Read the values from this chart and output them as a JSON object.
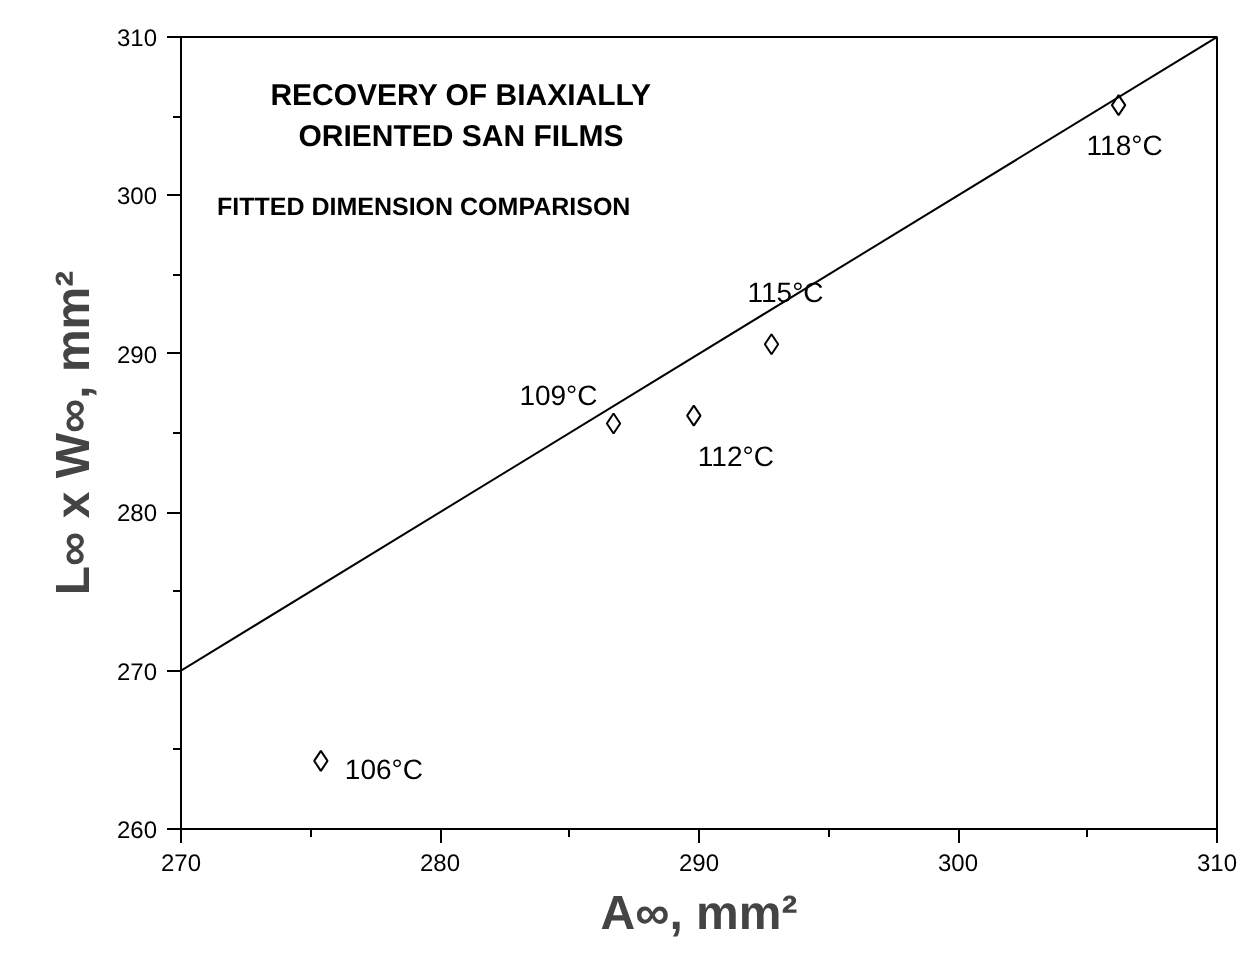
{
  "chart_data": {
    "type": "scatter",
    "title": "RECOVERY OF BIAXIALLY\nORIENTED SAN FILMS",
    "subtitle": "FITTED DIMENSION COMPARISON",
    "xlabel": "A∞, mm²",
    "ylabel": "L∞ x W∞, mm²",
    "x": [
      275.4,
      286.7,
      289.8,
      292.8,
      306.2
    ],
    "series": [
      {
        "color": "#000000",
        "marker": "diamond",
        "values": [
          264.3,
          285.6,
          286.1,
          290.6,
          305.7
        ]
      },
      {
        "type": "line",
        "color": "#000000",
        "marker": "none",
        "line_style": "solid",
        "x": [
          270,
          310
        ],
        "values": [
          270,
          310
        ]
      }
    ],
    "annotations": [
      {
        "text": "106°C",
        "x": 275.4,
        "y": 264.3
      },
      {
        "text": "109°C",
        "x": 286.7,
        "y": 285.6
      },
      {
        "text": "112°C",
        "x": 289.8,
        "y": 286.1
      },
      {
        "text": "115°C",
        "x": 292.8,
        "y": 290.6
      },
      {
        "text": "118°C",
        "x": 306.2,
        "y": 305.7
      }
    ],
    "xlim": [
      270,
      310
    ],
    "ylim": [
      260,
      310
    ],
    "xticks": [
      270,
      280,
      290,
      300,
      310
    ],
    "yticks": [
      260,
      270,
      280,
      290,
      300,
      310
    ],
    "grid": false
  }
}
